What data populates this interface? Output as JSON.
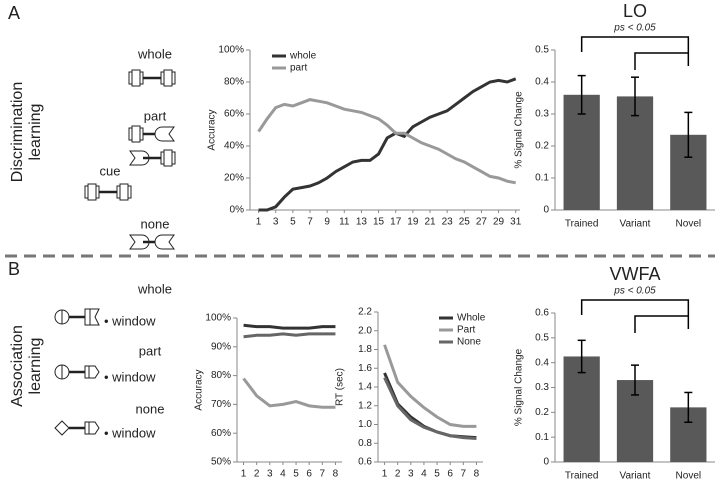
{
  "panels": [
    {
      "letter": "A",
      "label": [
        "Discrimination",
        "learning"
      ],
      "stimuli": [
        "cue",
        "whole",
        "part",
        "none"
      ]
    },
    {
      "letter": "B",
      "label": [
        "Association",
        "learning"
      ],
      "stimuli": [
        "whole",
        "part",
        "none"
      ],
      "word": "• window"
    }
  ],
  "chart_data": [
    {
      "type": "line",
      "y_label": "Accuracy",
      "legend": "upper left",
      "x": [
        1,
        2,
        3,
        4,
        5,
        6,
        7,
        8,
        9,
        10,
        11,
        12,
        13,
        14,
        15,
        16,
        17,
        18,
        19,
        20,
        21,
        22,
        23,
        24,
        25,
        26,
        27,
        28,
        29,
        30,
        31
      ],
      "xlim": [
        0,
        31.5
      ],
      "xticks": [
        1,
        3,
        5,
        7,
        9,
        11,
        13,
        15,
        17,
        19,
        21,
        23,
        25,
        27,
        29,
        31
      ],
      "ylim": [
        0,
        100
      ],
      "yticks": [
        {
          "value": 0,
          "label": "0%"
        },
        {
          "value": 20,
          "label": "20%"
        },
        {
          "value": 40,
          "label": "40%"
        },
        {
          "value": 60,
          "label": "60%"
        },
        {
          "value": 80,
          "label": "80%"
        },
        {
          "value": 100,
          "label": "100%"
        }
      ],
      "series": [
        {
          "name": "whole",
          "color": "#333333",
          "values": [
            0,
            0,
            2,
            8,
            13,
            14,
            15,
            17,
            20,
            24,
            27,
            30,
            31,
            31,
            35,
            45,
            48,
            46,
            52,
            55,
            58,
            60,
            62,
            66,
            70,
            74,
            77,
            80,
            81,
            80,
            82
          ]
        },
        {
          "name": "part",
          "color": "#999999",
          "values": [
            49,
            57,
            64,
            66,
            65,
            67,
            69,
            68,
            67,
            65,
            63,
            62,
            61,
            59,
            57,
            53,
            48,
            48,
            45,
            42,
            40,
            38,
            35,
            32,
            30,
            27,
            24,
            21,
            20,
            18,
            17
          ]
        }
      ]
    },
    {
      "type": "bar",
      "title": "LO",
      "annotation": "ps < 0.05",
      "y_label": "% Signal Change",
      "categories": [
        "Trained",
        "Variant",
        "Novel"
      ],
      "values": [
        0.36,
        0.355,
        0.235
      ],
      "errors": [
        0.06,
        0.06,
        0.07
      ],
      "color": "#595959",
      "ylim": [
        0,
        0.5
      ],
      "yticks": [
        0,
        0.1,
        0.2,
        0.3,
        0.4,
        0.5
      ]
    },
    {
      "type": "line",
      "y_label": "Accuracy",
      "x": [
        1,
        2,
        3,
        4,
        5,
        6,
        7,
        8
      ],
      "xlim": [
        0.5,
        8.5
      ],
      "xticks": [
        1,
        2,
        3,
        4,
        5,
        6,
        7,
        8
      ],
      "ylim": [
        50,
        100
      ],
      "yticks": [
        {
          "value": 50,
          "label": "50%"
        },
        {
          "value": 60,
          "label": "60%"
        },
        {
          "value": 70,
          "label": "70%"
        },
        {
          "value": 80,
          "label": "80%"
        },
        {
          "value": 90,
          "label": "90%"
        },
        {
          "value": 100,
          "label": "100%"
        }
      ],
      "series": [
        {
          "color": "#333333",
          "values": [
            97.5,
            97,
            97,
            96.5,
            96.5,
            96.5,
            97,
            97
          ]
        },
        {
          "color": "#999999",
          "values": [
            79,
            73,
            69.5,
            70,
            71,
            69.5,
            69,
            69
          ]
        },
        {
          "color": "#666666",
          "values": [
            93.5,
            94,
            94,
            94.5,
            94,
            94.5,
            94.5,
            94.5
          ]
        }
      ]
    },
    {
      "type": "line",
      "y_label": "RT (sec)",
      "legend": "upper right",
      "x": [
        1,
        2,
        3,
        4,
        5,
        6,
        7,
        8
      ],
      "xlim": [
        0.5,
        8.5
      ],
      "xticks": [
        1,
        2,
        3,
        4,
        5,
        6,
        7,
        8
      ],
      "ylim": [
        0.6,
        2.2
      ],
      "yticks": [
        0.6,
        0.8,
        {
          "value": 1,
          "label": "1.0"
        },
        1.2,
        1.4,
        1.6,
        1.8,
        {
          "value": 2,
          "label": "2.0"
        },
        2.2
      ],
      "series": [
        {
          "name": "Whole",
          "color": "#333333",
          "values": [
            1.55,
            1.22,
            1.08,
            0.98,
            0.92,
            0.88,
            0.87,
            0.86
          ]
        },
        {
          "name": "Part",
          "color": "#999999",
          "values": [
            1.85,
            1.45,
            1.3,
            1.18,
            1.08,
            1.0,
            0.98,
            0.98
          ]
        },
        {
          "name": "None",
          "color": "#666666",
          "values": [
            1.5,
            1.2,
            1.05,
            0.97,
            0.92,
            0.88,
            0.86,
            0.85
          ]
        }
      ]
    },
    {
      "type": "bar",
      "title": "VWFA",
      "annotation": "ps < 0.05",
      "y_label": "% Signal Change",
      "categories": [
        "Trained",
        "Variant",
        "Novel"
      ],
      "values": [
        0.425,
        0.33,
        0.22
      ],
      "errors": [
        0.065,
        0.06,
        0.06
      ],
      "color": "#595959",
      "ylim": [
        0,
        0.6
      ],
      "yticks": [
        0,
        0.1,
        0.2,
        0.3,
        0.4,
        0.5,
        0.6
      ]
    }
  ]
}
